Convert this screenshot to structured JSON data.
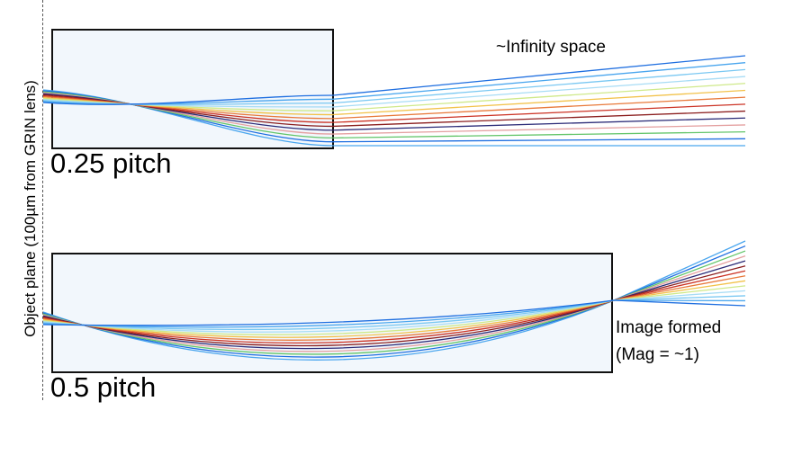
{
  "object_plane_label": "Object plane (100µm from GRIN lens)",
  "lens_quarter": {
    "pitch_label": "0.25 pitch",
    "annotation": "~Infinity space"
  },
  "lens_half": {
    "pitch_label": "0.5 pitch",
    "annotation_line1": "Image formed",
    "annotation_line2": "(Mag = ~1)"
  },
  "colors": {
    "lens_fill": "#f2f7fc",
    "lens_border": "#111111",
    "rays": [
      "#1f6fe0",
      "#4aa6ee",
      "#7ac8f2",
      "#a7dcf5",
      "#cfe98a",
      "#f2c24a",
      "#e8793a",
      "#cc3325",
      "#8b1e1e",
      "#2c2c78",
      "#e4a0a0",
      "#63c56a"
    ]
  }
}
